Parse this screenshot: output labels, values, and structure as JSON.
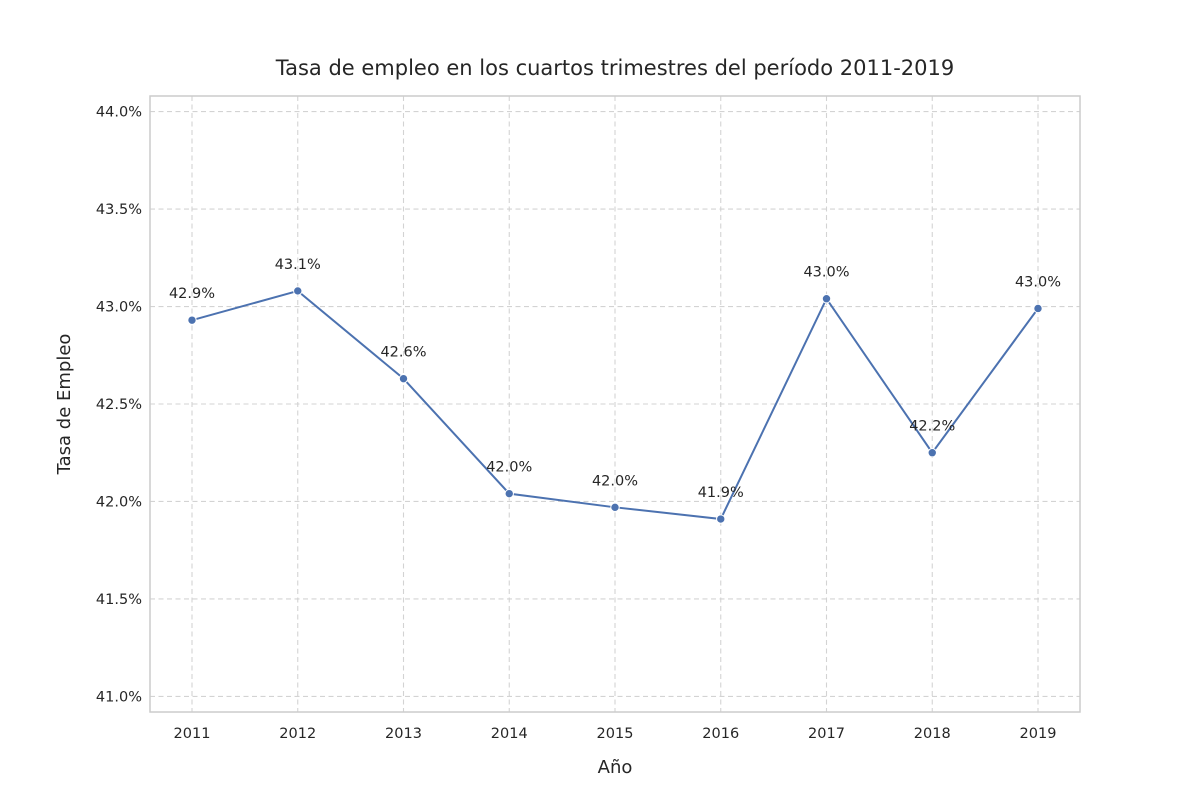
{
  "chart_data": {
    "type": "line",
    "title": "Tasa de empleo en los cuartos trimestres del período 2011-2019",
    "xlabel": "Año",
    "ylabel": "Tasa de Empleo",
    "x": [
      "2011",
      "2012",
      "2013",
      "2014",
      "2015",
      "2016",
      "2017",
      "2018",
      "2019"
    ],
    "series": [
      {
        "values": [
          42.93,
          43.08,
          42.63,
          42.04,
          41.97,
          41.91,
          43.04,
          42.25,
          42.99
        ],
        "data_labels": [
          "42.9%",
          "43.1%",
          "42.6%",
          "42.0%",
          "42.0%",
          "41.9%",
          "43.0%",
          "42.2%",
          "43.0%"
        ]
      }
    ],
    "ylim": [
      40.92,
      44.08
    ],
    "yticks": [
      41.0,
      41.5,
      42.0,
      42.5,
      43.0,
      43.5,
      44.0
    ],
    "ytick_labels": [
      "41.0%",
      "41.5%",
      "42.0%",
      "42.5%",
      "43.0%",
      "43.5%",
      "44.0%"
    ],
    "grid": true,
    "colors": {
      "line": "#4c72b0",
      "marker": "#4c72b0"
    }
  }
}
